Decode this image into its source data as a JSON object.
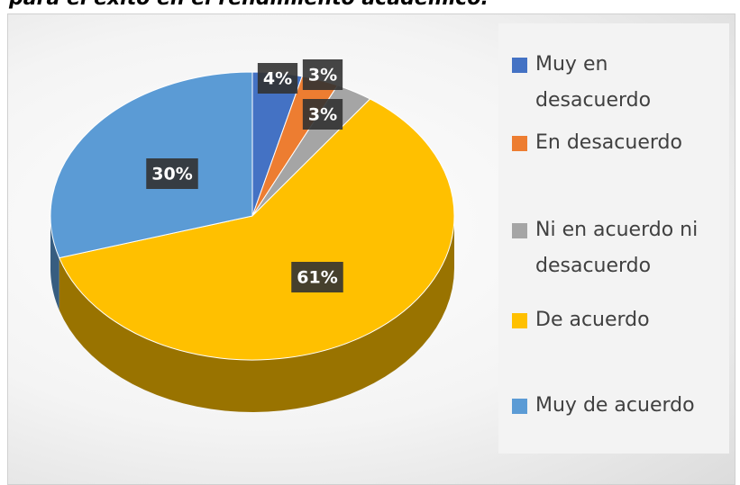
{
  "chart_data": {
    "type": "pie",
    "title": "para el éxito en el rendimiento académico.",
    "categories": [
      "Muy en desacuerdo",
      "En desacuerdo",
      "Ni en acuerdo ni desacuerdo",
      "De acuerdo",
      "Muy de acuerdo"
    ],
    "values": [
      4,
      3,
      3,
      61,
      30
    ],
    "value_labels": [
      "4%",
      "3%",
      "3%",
      "61%",
      "30%"
    ],
    "colors": [
      "#4472c4",
      "#ed7d31",
      "#a5a5a5",
      "#ffc000",
      "#5b9bd5"
    ],
    "legend": "right"
  }
}
